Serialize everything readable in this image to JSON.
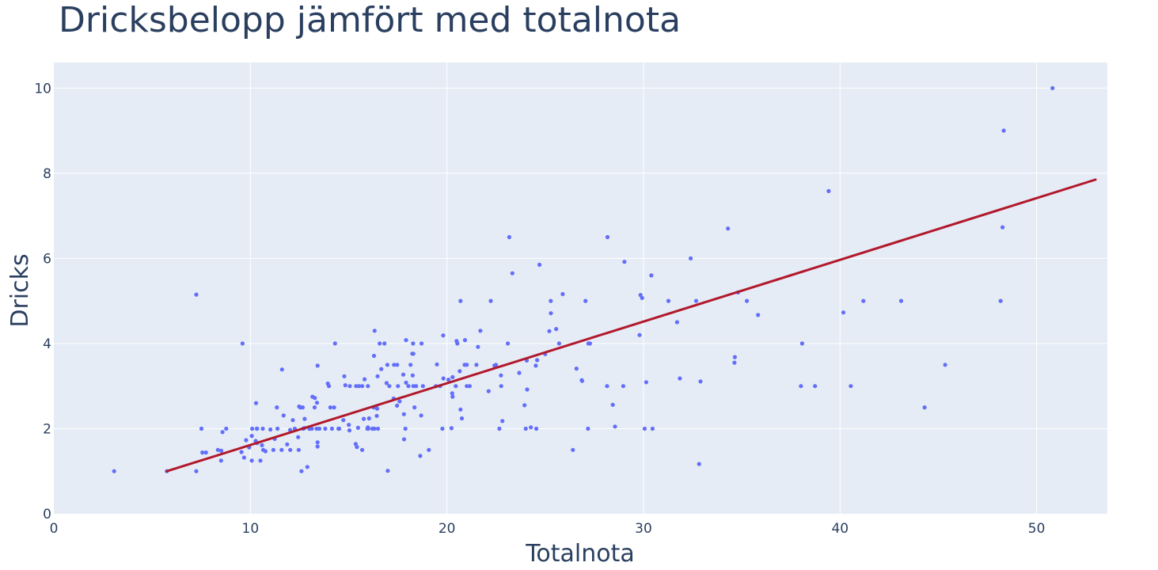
{
  "chart_data": {
    "type": "scatter",
    "title": "Dricksbelopp jämfört med totalnota",
    "xlabel": "Totalnota",
    "ylabel": "Dricks",
    "xlim": [
      0,
      53.6
    ],
    "ylim": [
      0,
      10.6
    ],
    "x_ticks": [
      0,
      10,
      20,
      30,
      40,
      50
    ],
    "y_ticks": [
      0,
      2,
      4,
      6,
      8,
      10
    ],
    "grid": true,
    "colors": {
      "points": "#636efa",
      "trendline": "#b2182b",
      "plot_bg": "#e5ecf6",
      "text": "#2a3f5f"
    },
    "trendline": {
      "x": [
        5.75,
        53.0
      ],
      "y": [
        1.0,
        7.85
      ]
    },
    "points": [
      [
        3.07,
        1.0
      ],
      [
        5.75,
        1.0
      ],
      [
        7.25,
        5.15
      ],
      [
        7.25,
        1.0
      ],
      [
        7.51,
        2.0
      ],
      [
        7.56,
        1.44
      ],
      [
        7.74,
        1.44
      ],
      [
        8.35,
        1.5
      ],
      [
        8.51,
        1.25
      ],
      [
        8.52,
        1.48
      ],
      [
        8.58,
        1.92
      ],
      [
        8.77,
        2.0
      ],
      [
        9.55,
        1.45
      ],
      [
        9.6,
        4.0
      ],
      [
        9.68,
        1.32
      ],
      [
        9.78,
        1.73
      ],
      [
        9.94,
        1.56
      ],
      [
        10.07,
        1.83
      ],
      [
        10.07,
        1.25
      ],
      [
        10.09,
        2.0
      ],
      [
        10.27,
        1.71
      ],
      [
        10.29,
        2.6
      ],
      [
        10.33,
        1.67
      ],
      [
        10.33,
        2.0
      ],
      [
        10.34,
        1.66
      ],
      [
        10.34,
        2.0
      ],
      [
        10.51,
        1.25
      ],
      [
        10.59,
        1.61
      ],
      [
        10.63,
        2.0
      ],
      [
        10.65,
        1.5
      ],
      [
        10.77,
        1.47
      ],
      [
        11.02,
        1.98
      ],
      [
        11.17,
        1.5
      ],
      [
        11.24,
        1.76
      ],
      [
        11.35,
        2.5
      ],
      [
        11.38,
        2.0
      ],
      [
        11.59,
        1.5
      ],
      [
        11.61,
        3.39
      ],
      [
        11.69,
        2.31
      ],
      [
        11.87,
        1.63
      ],
      [
        12.02,
        1.97
      ],
      [
        12.03,
        1.5
      ],
      [
        12.16,
        2.2
      ],
      [
        12.26,
        2.0
      ],
      [
        12.43,
        1.8
      ],
      [
        12.46,
        1.5
      ],
      [
        12.48,
        2.52
      ],
      [
        12.54,
        2.5
      ],
      [
        12.6,
        1.0
      ],
      [
        12.66,
        2.5
      ],
      [
        12.69,
        2.0
      ],
      [
        12.74,
        2.01
      ],
      [
        12.76,
        2.23
      ],
      [
        12.9,
        1.1
      ],
      [
        13.0,
        2.0
      ],
      [
        13.03,
        2.0
      ],
      [
        13.13,
        2.0
      ],
      [
        13.16,
        2.75
      ],
      [
        13.27,
        2.5
      ],
      [
        13.28,
        2.72
      ],
      [
        13.37,
        2.0
      ],
      [
        13.39,
        2.61
      ],
      [
        13.42,
        3.48
      ],
      [
        13.42,
        1.68
      ],
      [
        13.42,
        1.58
      ],
      [
        13.51,
        2.0
      ],
      [
        13.81,
        2.0
      ],
      [
        13.94,
        3.06
      ],
      [
        14.0,
        3.0
      ],
      [
        14.07,
        2.5
      ],
      [
        14.15,
        2.0
      ],
      [
        14.26,
        2.5
      ],
      [
        14.31,
        4.0
      ],
      [
        14.48,
        2.0
      ],
      [
        14.52,
        2.0
      ],
      [
        14.73,
        2.2
      ],
      [
        14.78,
        3.23
      ],
      [
        14.83,
        3.02
      ],
      [
        15.01,
        2.09
      ],
      [
        15.04,
        1.96
      ],
      [
        15.06,
        3.0
      ],
      [
        15.36,
        1.64
      ],
      [
        15.38,
        3.0
      ],
      [
        15.42,
        1.57
      ],
      [
        15.48,
        2.02
      ],
      [
        15.53,
        3.0
      ],
      [
        15.69,
        1.5
      ],
      [
        15.69,
        3.0
      ],
      [
        15.77,
        2.23
      ],
      [
        15.81,
        3.16
      ],
      [
        15.95,
        2.0
      ],
      [
        15.98,
        2.03
      ],
      [
        15.98,
        3.0
      ],
      [
        16.0,
        2.0
      ],
      [
        16.04,
        2.24
      ],
      [
        16.21,
        2.0
      ],
      [
        16.27,
        2.5
      ],
      [
        16.29,
        3.71
      ],
      [
        16.31,
        2.0
      ],
      [
        16.32,
        4.3
      ],
      [
        16.4,
        2.5
      ],
      [
        16.43,
        2.3
      ],
      [
        16.45,
        2.47
      ],
      [
        16.47,
        3.23
      ],
      [
        16.49,
        2.0
      ],
      [
        16.58,
        4.0
      ],
      [
        16.66,
        3.4
      ],
      [
        16.82,
        4.0
      ],
      [
        16.93,
        3.07
      ],
      [
        16.97,
        3.5
      ],
      [
        16.99,
        1.01
      ],
      [
        17.07,
        3.0
      ],
      [
        17.29,
        2.71
      ],
      [
        17.31,
        3.5
      ],
      [
        17.46,
        2.54
      ],
      [
        17.47,
        3.5
      ],
      [
        17.51,
        3.0
      ],
      [
        17.59,
        2.64
      ],
      [
        17.78,
        3.27
      ],
      [
        17.81,
        2.34
      ],
      [
        17.82,
        1.75
      ],
      [
        17.89,
        2.0
      ],
      [
        17.92,
        4.08
      ],
      [
        17.92,
        3.08
      ],
      [
        18.04,
        3.0
      ],
      [
        18.15,
        3.5
      ],
      [
        18.24,
        3.76
      ],
      [
        18.26,
        3.25
      ],
      [
        18.28,
        4.0
      ],
      [
        18.29,
        3.76
      ],
      [
        18.29,
        3.0
      ],
      [
        18.35,
        2.5
      ],
      [
        18.43,
        3.0
      ],
      [
        18.64,
        1.36
      ],
      [
        18.69,
        2.31
      ],
      [
        18.71,
        4.0
      ],
      [
        18.78,
        3.0
      ],
      [
        19.08,
        1.5
      ],
      [
        19.44,
        3.0
      ],
      [
        19.49,
        3.51
      ],
      [
        19.65,
        3.0
      ],
      [
        19.77,
        2.0
      ],
      [
        19.81,
        4.19
      ],
      [
        19.82,
        3.18
      ],
      [
        20.08,
        3.15
      ],
      [
        20.23,
        2.01
      ],
      [
        20.27,
        2.83
      ],
      [
        20.29,
        2.75
      ],
      [
        20.29,
        3.21
      ],
      [
        20.45,
        3.0
      ],
      [
        20.49,
        4.06
      ],
      [
        20.53,
        4.0
      ],
      [
        20.65,
        3.35
      ],
      [
        20.69,
        2.45
      ],
      [
        20.69,
        5.0
      ],
      [
        20.76,
        2.24
      ],
      [
        20.9,
        3.5
      ],
      [
        20.92,
        4.08
      ],
      [
        21.01,
        3.5
      ],
      [
        21.01,
        3.0
      ],
      [
        21.16,
        3.0
      ],
      [
        21.5,
        3.5
      ],
      [
        21.58,
        3.92
      ],
      [
        21.7,
        4.3
      ],
      [
        22.12,
        2.88
      ],
      [
        22.23,
        5.0
      ],
      [
        22.42,
        3.48
      ],
      [
        22.49,
        3.5
      ],
      [
        22.67,
        2.0
      ],
      [
        22.75,
        3.25
      ],
      [
        22.76,
        3.0
      ],
      [
        22.82,
        2.18
      ],
      [
        23.1,
        4.0
      ],
      [
        23.17,
        6.5
      ],
      [
        23.33,
        5.65
      ],
      [
        23.68,
        3.31
      ],
      [
        23.95,
        2.55
      ],
      [
        24.01,
        2.0
      ],
      [
        24.06,
        3.6
      ],
      [
        24.08,
        2.92
      ],
      [
        24.27,
        2.03
      ],
      [
        24.52,
        3.48
      ],
      [
        24.55,
        2.0
      ],
      [
        24.59,
        3.61
      ],
      [
        24.71,
        5.85
      ],
      [
        25.0,
        3.75
      ],
      [
        25.21,
        4.29
      ],
      [
        25.28,
        5.0
      ],
      [
        25.29,
        4.71
      ],
      [
        25.56,
        4.34
      ],
      [
        25.71,
        4.0
      ],
      [
        25.89,
        5.16
      ],
      [
        26.41,
        1.5
      ],
      [
        26.59,
        3.41
      ],
      [
        26.86,
        3.14
      ],
      [
        26.88,
        3.12
      ],
      [
        27.05,
        5.0
      ],
      [
        27.18,
        2.0
      ],
      [
        27.2,
        4.0
      ],
      [
        27.28,
        4.0
      ],
      [
        28.15,
        3.0
      ],
      [
        28.17,
        6.5
      ],
      [
        28.44,
        2.56
      ],
      [
        28.55,
        2.05
      ],
      [
        28.97,
        3.0
      ],
      [
        29.03,
        5.92
      ],
      [
        29.8,
        4.2
      ],
      [
        29.85,
        5.14
      ],
      [
        29.93,
        5.07
      ],
      [
        30.06,
        2.0
      ],
      [
        30.14,
        3.09
      ],
      [
        30.4,
        5.6
      ],
      [
        30.46,
        2.0
      ],
      [
        31.27,
        5.0
      ],
      [
        31.71,
        4.5
      ],
      [
        31.85,
        3.18
      ],
      [
        32.4,
        6.0
      ],
      [
        32.68,
        5.0
      ],
      [
        32.83,
        1.17
      ],
      [
        32.9,
        3.11
      ],
      [
        34.3,
        6.7
      ],
      [
        34.63,
        3.55
      ],
      [
        34.65,
        3.68
      ],
      [
        34.81,
        5.2
      ],
      [
        35.26,
        5.0
      ],
      [
        35.83,
        4.67
      ],
      [
        38.01,
        3.0
      ],
      [
        38.07,
        4.0
      ],
      [
        38.73,
        3.0
      ],
      [
        39.42,
        7.58
      ],
      [
        40.17,
        4.73
      ],
      [
        40.55,
        3.0
      ],
      [
        41.19,
        5.0
      ],
      [
        43.11,
        5.0
      ],
      [
        44.3,
        2.5
      ],
      [
        45.35,
        3.5
      ],
      [
        48.17,
        5.0
      ],
      [
        48.27,
        6.73
      ],
      [
        48.33,
        9.0
      ],
      [
        50.81,
        10.0
      ]
    ]
  }
}
